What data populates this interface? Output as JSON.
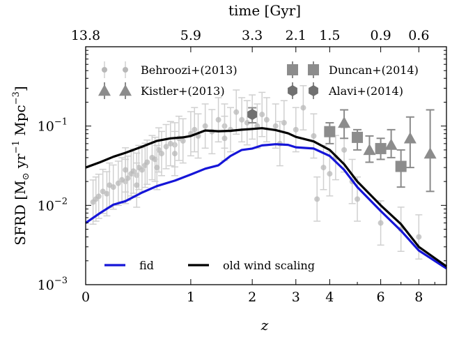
{
  "chart_data": {
    "type": "line",
    "xscale": "log(1+z)",
    "yscale": "log",
    "xlabel": "z",
    "ylabel_parts": {
      "main": "SFRD [M",
      "sub": "⊙",
      "mid": " yr",
      "sup1": "−1",
      "mid2": " Mpc",
      "sup2": "−3",
      "end": "]"
    },
    "top_axis_label": "time [Gyr]",
    "xlim": [
      0,
      9.8
    ],
    "ylim": [
      0.001,
      1.0
    ],
    "xticks": [
      0,
      1,
      2,
      3,
      4,
      6,
      8
    ],
    "xtick_labels": [
      "0",
      "1",
      "2",
      "3",
      "4",
      "6",
      "8"
    ],
    "yticks": [
      0.001,
      0.01,
      0.1
    ],
    "ytick_labels": [
      "10",
      "10",
      "10"
    ],
    "ytick_exponents": [
      "−3",
      "−2",
      "−1"
    ],
    "top_ticks": [
      {
        "z": 0.0,
        "label": "13.8"
      },
      {
        "z": 1.0,
        "label": "5.9"
      },
      {
        "z": 2.0,
        "label": "3.3"
      },
      {
        "z": 3.0,
        "label": "2.1"
      },
      {
        "z": 4.0,
        "label": "1.5"
      },
      {
        "z": 6.0,
        "label": "0.9"
      },
      {
        "z": 8.0,
        "label": "0.6"
      }
    ],
    "series": [
      {
        "name": "fid",
        "color": "#1515d8",
        "x": [
          0.0,
          0.1,
          0.2,
          0.3,
          0.45,
          0.6,
          0.8,
          1.0,
          1.2,
          1.4,
          1.6,
          1.8,
          2.0,
          2.2,
          2.5,
          2.8,
          3.0,
          3.5,
          4.0,
          4.5,
          5.0,
          6.0,
          7.0,
          8.0,
          9.8
        ],
        "y": [
          0.006,
          0.008,
          0.0102,
          0.0113,
          0.0145,
          0.0175,
          0.0205,
          0.0245,
          0.029,
          0.032,
          0.042,
          0.05,
          0.052,
          0.057,
          0.059,
          0.058,
          0.054,
          0.052,
          0.042,
          0.028,
          0.017,
          0.0085,
          0.0048,
          0.0027,
          0.0016
        ]
      },
      {
        "name": "old wind scaling",
        "color": "#000000",
        "x": [
          0.0,
          0.1,
          0.2,
          0.3,
          0.45,
          0.6,
          0.75,
          0.9,
          1.0,
          1.2,
          1.4,
          1.6,
          1.8,
          2.0,
          2.2,
          2.5,
          2.8,
          3.0,
          3.5,
          4.0,
          4.5,
          5.0,
          6.0,
          7.0,
          8.0,
          9.8
        ],
        "y": [
          0.03,
          0.035,
          0.041,
          0.046,
          0.055,
          0.065,
          0.07,
          0.072,
          0.075,
          0.088,
          0.086,
          0.087,
          0.09,
          0.092,
          0.094,
          0.089,
          0.081,
          0.073,
          0.064,
          0.05,
          0.033,
          0.02,
          0.01,
          0.0058,
          0.003,
          0.0017
        ]
      }
    ],
    "observations": {
      "behroozi": {
        "name": "Behroozi+(2013)",
        "points": [
          [
            0.05,
            0.011
          ],
          [
            0.07,
            0.012
          ],
          [
            0.09,
            0.013
          ],
          [
            0.12,
            0.015
          ],
          [
            0.15,
            0.014
          ],
          [
            0.17,
            0.018
          ],
          [
            0.2,
            0.017
          ],
          [
            0.24,
            0.019
          ],
          [
            0.27,
            0.021
          ],
          [
            0.3,
            0.02
          ],
          [
            0.32,
            0.022
          ],
          [
            0.35,
            0.025
          ],
          [
            0.37,
            0.027
          ],
          [
            0.4,
            0.024
          ],
          [
            0.42,
            0.03
          ],
          [
            0.45,
            0.028
          ],
          [
            0.48,
            0.032
          ],
          [
            0.5,
            0.035
          ],
          [
            0.55,
            0.04
          ],
          [
            0.58,
            0.038
          ],
          [
            0.62,
            0.05
          ],
          [
            0.65,
            0.045
          ],
          [
            0.7,
            0.055
          ],
          [
            0.75,
            0.06
          ],
          [
            0.8,
            0.058
          ],
          [
            0.85,
            0.07
          ],
          [
            0.9,
            0.065
          ],
          [
            1.0,
            0.08
          ],
          [
            1.05,
            0.09
          ],
          [
            1.1,
            0.075
          ],
          [
            1.2,
            0.1
          ],
          [
            1.3,
            0.085
          ],
          [
            1.4,
            0.12
          ],
          [
            1.5,
            0.1
          ],
          [
            1.6,
            0.09
          ],
          [
            1.7,
            0.15
          ],
          [
            1.8,
            0.12
          ],
          [
            1.9,
            0.11
          ],
          [
            2.0,
            0.13
          ],
          [
            2.1,
            0.1
          ],
          [
            2.2,
            0.14
          ],
          [
            2.3,
            0.12
          ],
          [
            2.5,
            0.1
          ],
          [
            2.7,
            0.11
          ],
          [
            3.0,
            0.09
          ],
          [
            3.2,
            0.17
          ],
          [
            3.5,
            0.075
          ],
          [
            3.8,
            0.03
          ],
          [
            4.0,
            0.025
          ],
          [
            4.2,
            0.04
          ],
          [
            4.5,
            0.05
          ],
          [
            5.0,
            0.012
          ],
          [
            6.0,
            0.006
          ],
          [
            7.0,
            0.005
          ],
          [
            8.0,
            0.004
          ],
          [
            0.3,
            0.028
          ],
          [
            0.4,
            0.018
          ],
          [
            0.6,
            0.03
          ],
          [
            0.8,
            0.045
          ],
          [
            1.5,
            0.07
          ],
          [
            2.6,
            0.06
          ],
          [
            3.6,
            0.012
          ],
          [
            4.8,
            0.02
          ]
        ]
      },
      "kistler": {
        "name": "Kistler+(2013)",
        "points": [
          [
            4.5,
            0.11
          ],
          [
            5.5,
            0.05
          ],
          [
            6.5,
            0.058
          ],
          [
            7.5,
            0.07
          ],
          [
            8.7,
            0.045
          ]
        ],
        "errs": [
          [
            0.07,
            0.16
          ],
          [
            0.035,
            0.075
          ],
          [
            0.04,
            0.09
          ],
          [
            0.03,
            0.13
          ],
          [
            0.015,
            0.16
          ]
        ]
      },
      "duncan": {
        "name": "Duncan+(2014)",
        "points": [
          [
            4.0,
            0.085
          ],
          [
            5.0,
            0.072
          ],
          [
            6.0,
            0.052
          ],
          [
            7.0,
            0.031
          ]
        ],
        "errs": [
          [
            0.06,
            0.11
          ],
          [
            0.05,
            0.09
          ],
          [
            0.038,
            0.07
          ],
          [
            0.017,
            0.05
          ]
        ]
      },
      "alavi": {
        "name": "Alavi+(2014)",
        "points": [
          [
            2.0,
            0.14
          ]
        ],
        "errs": [
          [
            0.11,
            0.17
          ]
        ]
      }
    },
    "legend_top": [
      {
        "name": "Behroozi+(2013)",
        "marker": "circle"
      },
      {
        "name": "Kistler+(2013)",
        "marker": "triangle"
      },
      {
        "name": "Duncan+(2014)",
        "marker": "square"
      },
      {
        "name": "Alavi+(2014)",
        "marker": "hexagon"
      }
    ],
    "legend_bottom": [
      {
        "name": "fid",
        "color": "#1515d8"
      },
      {
        "name": "old wind scaling",
        "color": "#000000"
      }
    ],
    "grid": false,
    "legend_placement": "top and bottom-left inside"
  }
}
